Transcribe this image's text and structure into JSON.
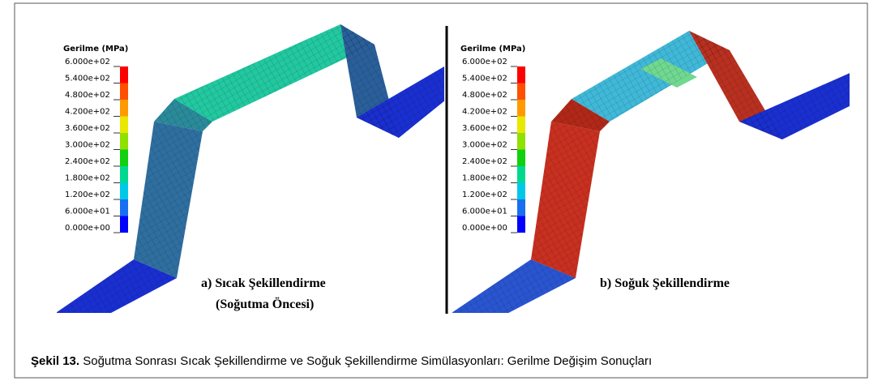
{
  "figure": {
    "panels": [
      {
        "legend_title": "Gerilme (MPa)",
        "legend_ticks": [
          "6.000e+02",
          "5.400e+02",
          "4.800e+02",
          "4.200e+02",
          "3.600e+02",
          "3.000e+02",
          "2.400e+02",
          "1.800e+02",
          "1.200e+02",
          "6.000e+01",
          "0.000e+00"
        ],
        "label": "a) Sıcak Şekillendirme",
        "sublabel": "(Soğutma Öncesi)"
      },
      {
        "legend_title": "Gerilme (MPa)",
        "legend_ticks": [
          "6.000e+02",
          "5.400e+02",
          "4.800e+02",
          "4.200e+02",
          "3.600e+02",
          "3.000e+02",
          "2.400e+02",
          "1.800e+02",
          "1.200e+02",
          "6.000e+01",
          "0.000e+00"
        ],
        "label": "b) Soğuk Şekillendirme"
      }
    ],
    "caption": {
      "number": "Şekil 13.",
      "text": "Soğutma Sonrası Sıcak Şekillendirme ve Soğuk Şekillendirme Simülasyonları: Gerilme Değişim Sonuçları"
    }
  }
}
